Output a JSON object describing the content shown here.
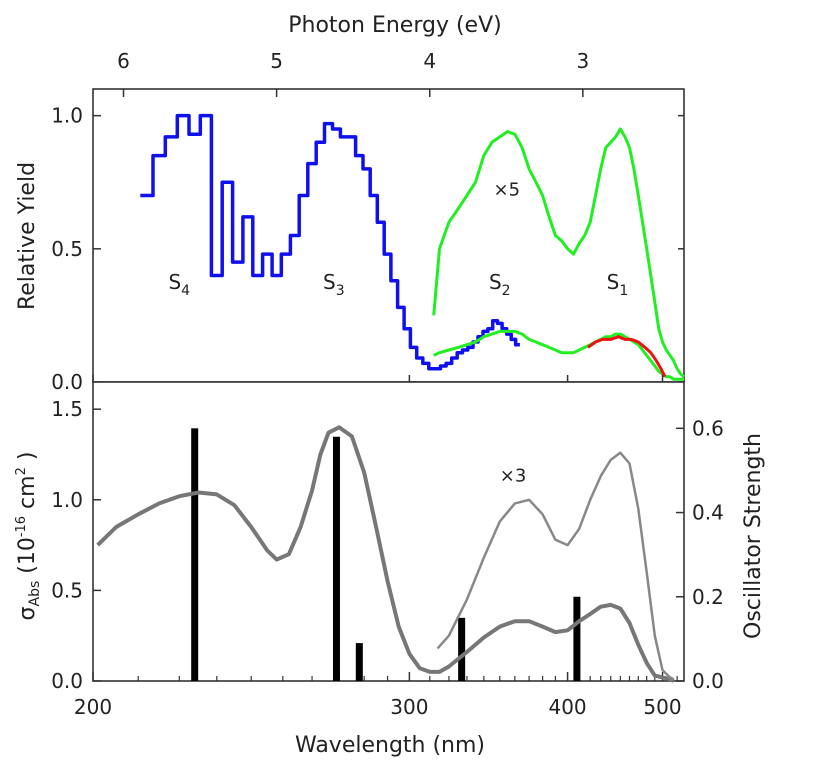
{
  "chart_data": [
    {
      "type": "line",
      "panel": "top",
      "ylabel": "Relative Yield",
      "top_axis_title": "Photon Energy (eV)",
      "top_axis_ticks": [
        {
          "value": 6,
          "label": "6"
        },
        {
          "value": 5,
          "label": "5"
        },
        {
          "value": 4,
          "label": "4"
        },
        {
          "value": 3,
          "label": "3"
        }
      ],
      "xscale": "reciprocal",
      "xlim": [
        200,
        530
      ],
      "ylim": [
        0,
        1.1
      ],
      "y_ticks": [
        {
          "value": 0.0,
          "label": "0.0"
        },
        {
          "value": 0.5,
          "label": "0.5"
        },
        {
          "value": 1.0,
          "label": "1.0"
        }
      ],
      "state_labels": [
        {
          "text": "S",
          "sub": "4",
          "x": 220,
          "y": 0.35
        },
        {
          "text": "S",
          "sub": "3",
          "x": 268,
          "y": 0.35
        },
        {
          "text": "S",
          "sub": "2",
          "x": 350,
          "y": 0.35
        },
        {
          "text": "S",
          "sub": "1",
          "x": 447,
          "y": 0.35
        }
      ],
      "factor_label": {
        "text": "×5",
        "x": 346,
        "y": 0.7
      },
      "series": [
        {
          "color": "#1010ee",
          "style": "step",
          "x": [
            212,
            215,
            218,
            221,
            224,
            227,
            230,
            233,
            236,
            239,
            242,
            245,
            248,
            251,
            254,
            257,
            260,
            263,
            266,
            269,
            272,
            275,
            278,
            281,
            284,
            287,
            290,
            293,
            296,
            299,
            302,
            305,
            308,
            311,
            314,
            317,
            320,
            323,
            326,
            329,
            332,
            335,
            338,
            341,
            344,
            347,
            350,
            353,
            356,
            359,
            362
          ],
          "y": [
            0.7,
            0.85,
            0.92,
            1.0,
            0.93,
            1.0,
            0.4,
            0.75,
            0.45,
            0.62,
            0.4,
            0.48,
            0.4,
            0.48,
            0.55,
            0.7,
            0.82,
            0.9,
            0.97,
            0.95,
            0.92,
            0.92,
            0.85,
            0.8,
            0.7,
            0.6,
            0.48,
            0.38,
            0.28,
            0.2,
            0.13,
            0.09,
            0.07,
            0.05,
            0.05,
            0.06,
            0.07,
            0.09,
            0.11,
            0.12,
            0.13,
            0.15,
            0.17,
            0.19,
            0.2,
            0.23,
            0.22,
            0.2,
            0.18,
            0.16,
            0.14
          ]
        },
        {
          "color": "#22ee22",
          "style": "line",
          "x": [
            312,
            315,
            320,
            325,
            330,
            335,
            340,
            345,
            350,
            355,
            360,
            365,
            370,
            375,
            380,
            385,
            390,
            395,
            400,
            405,
            410,
            415,
            420,
            425,
            430,
            435,
            440,
            445,
            450,
            455,
            460,
            465,
            470,
            475,
            480,
            485,
            490,
            495,
            500,
            505,
            510,
            515,
            520,
            525,
            530
          ],
          "y": [
            0.25,
            0.5,
            0.6,
            0.65,
            0.7,
            0.75,
            0.85,
            0.9,
            0.92,
            0.94,
            0.93,
            0.88,
            0.8,
            0.75,
            0.7,
            0.62,
            0.55,
            0.53,
            0.5,
            0.48,
            0.52,
            0.55,
            0.6,
            0.7,
            0.8,
            0.88,
            0.9,
            0.92,
            0.95,
            0.92,
            0.88,
            0.8,
            0.7,
            0.6,
            0.5,
            0.4,
            0.3,
            0.2,
            0.15,
            0.12,
            0.1,
            0.08,
            0.05,
            0.03,
            0.02
          ]
        },
        {
          "color": "#22ee22",
          "style": "line",
          "x": [
            312,
            315,
            320,
            325,
            330,
            335,
            340,
            345,
            350,
            355,
            360,
            365,
            370,
            375,
            380,
            385,
            390,
            395,
            400,
            405,
            410,
            415,
            420,
            425,
            430,
            435,
            440,
            445,
            450,
            455,
            460,
            465,
            470,
            475,
            480,
            485,
            490,
            495,
            500,
            505,
            510,
            515,
            520,
            525,
            530
          ],
          "y": [
            0.1,
            0.11,
            0.12,
            0.13,
            0.14,
            0.15,
            0.17,
            0.18,
            0.19,
            0.19,
            0.19,
            0.18,
            0.16,
            0.15,
            0.14,
            0.13,
            0.12,
            0.11,
            0.11,
            0.11,
            0.12,
            0.13,
            0.14,
            0.15,
            0.16,
            0.17,
            0.17,
            0.18,
            0.18,
            0.17,
            0.16,
            0.15,
            0.14,
            0.12,
            0.1,
            0.08,
            0.06,
            0.04,
            0.03,
            0.02,
            0.02,
            0.01,
            0.01,
            0.01,
            0.01
          ]
        },
        {
          "color": "#ee1111",
          "style": "line",
          "x": [
            418,
            425,
            432,
            440,
            448,
            455,
            462,
            470,
            478,
            485,
            492,
            498,
            503
          ],
          "y": [
            0.13,
            0.15,
            0.16,
            0.16,
            0.17,
            0.16,
            0.16,
            0.15,
            0.13,
            0.11,
            0.08,
            0.05,
            0.02
          ]
        }
      ]
    },
    {
      "type": "line",
      "panel": "bottom",
      "xlabel": "Wavelength (nm)",
      "ylabel": "σ",
      "ylabel_sub": "Abs",
      "ylabel_rest": " (10",
      "ylabel_exp": "-16",
      "ylabel_unit": " cm",
      "ylabel_unit_exp": "2",
      "ylabel_close": " )",
      "y2label": "Oscillator Strength",
      "xscale": "reciprocal",
      "xlim": [
        200,
        530
      ],
      "ylim": [
        0,
        1.65
      ],
      "y2lim": [
        0,
        0.71
      ],
      "x_ticks": [
        {
          "value": 200,
          "label": "200"
        },
        {
          "value": 300,
          "label": "300"
        },
        {
          "value": 400,
          "label": "400"
        },
        {
          "value": 500,
          "label": "500"
        }
      ],
      "y_ticks": [
        {
          "value": 0.0,
          "label": "0.0"
        },
        {
          "value": 0.5,
          "label": "0.5"
        },
        {
          "value": 1.0,
          "label": "1.0"
        },
        {
          "value": 1.5,
          "label": "1.5"
        }
      ],
      "y2_ticks": [
        {
          "value": 0.0,
          "label": "0.0"
        },
        {
          "value": 0.2,
          "label": "0.2"
        },
        {
          "value": 0.4,
          "label": "0.4"
        },
        {
          "value": 0.6,
          "label": "0.6"
        }
      ],
      "factor_label": {
        "text": "×3",
        "x": 350,
        "y": 1.1
      },
      "series": [
        {
          "color": "#777777",
          "width": 4,
          "x": [
            201,
            205,
            210,
            215,
            220,
            225,
            230,
            235,
            240,
            245,
            248,
            252,
            256,
            260,
            263,
            266,
            270,
            275,
            280,
            285,
            290,
            295,
            300,
            305,
            310,
            315,
            320,
            330,
            340,
            350,
            360,
            370,
            380,
            390,
            400,
            410,
            420,
            430,
            440,
            450,
            460,
            470,
            480,
            490,
            500,
            510,
            515
          ],
          "y": [
            0.75,
            0.85,
            0.92,
            0.98,
            1.02,
            1.04,
            1.03,
            0.97,
            0.85,
            0.72,
            0.67,
            0.7,
            0.85,
            1.05,
            1.25,
            1.37,
            1.4,
            1.35,
            1.15,
            0.85,
            0.55,
            0.3,
            0.15,
            0.07,
            0.05,
            0.05,
            0.08,
            0.16,
            0.24,
            0.3,
            0.33,
            0.33,
            0.3,
            0.27,
            0.28,
            0.33,
            0.37,
            0.41,
            0.42,
            0.4,
            0.32,
            0.2,
            0.1,
            0.03,
            0.02,
            0.01,
            0.0
          ]
        },
        {
          "color": "#888888",
          "width": 2.5,
          "x": [
            314,
            320,
            330,
            340,
            350,
            360,
            370,
            380,
            390,
            400,
            410,
            420,
            430,
            440,
            450,
            460,
            470,
            480,
            490,
            500,
            510,
            515
          ],
          "y": [
            0.18,
            0.25,
            0.45,
            0.68,
            0.88,
            0.98,
            1.0,
            0.92,
            0.78,
            0.75,
            0.84,
            1.0,
            1.13,
            1.22,
            1.26,
            1.2,
            0.95,
            0.6,
            0.25,
            0.06,
            0.02,
            0.01
          ]
        }
      ],
      "bars": {
        "color": "#000000",
        "axis": "y2",
        "x": [
          224,
          269,
          278,
          327,
          408
        ],
        "values": [
          0.6,
          0.58,
          0.09,
          0.15,
          0.2
        ]
      }
    }
  ]
}
